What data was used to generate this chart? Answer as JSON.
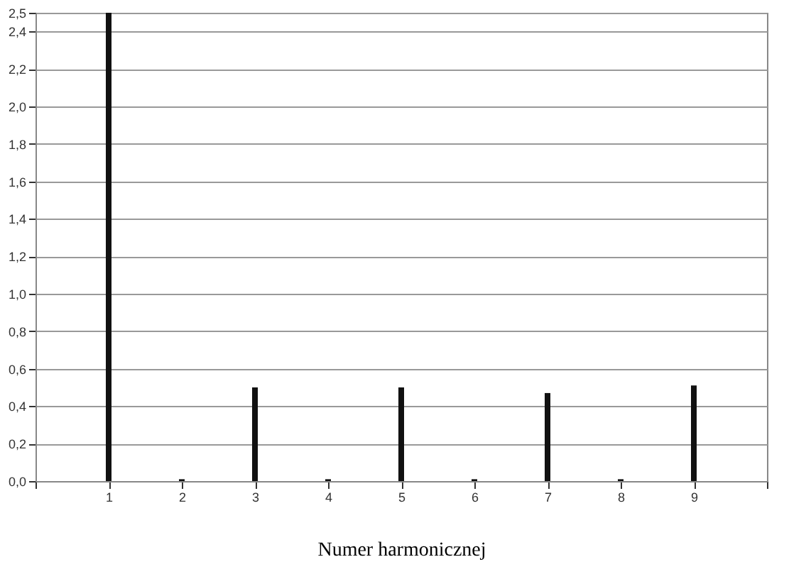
{
  "chart_data": {
    "type": "bar",
    "xlabel": "Numer harmonicznej",
    "x": [
      1,
      2,
      3,
      4,
      5,
      6,
      7,
      8,
      9
    ],
    "values": [
      2.5,
      0.01,
      0.5,
      0.01,
      0.5,
      0.01,
      0.47,
      0.01,
      0.51
    ],
    "color": "#111111",
    "xlim": [
      0,
      10
    ],
    "xticks": [
      {
        "value": 0,
        "label": null
      },
      1,
      2,
      3,
      4,
      5,
      6,
      7,
      8,
      9,
      {
        "value": 10,
        "label": null
      }
    ],
    "ylim": [
      0,
      2.5
    ],
    "yticks": [
      {
        "value": 0,
        "label": "0,0"
      },
      {
        "value": 0.2,
        "label": "0,2"
      },
      {
        "value": 0.4,
        "label": "0,4"
      },
      {
        "value": 0.6,
        "label": "0,6"
      },
      {
        "value": 0.8,
        "label": "0,8"
      },
      {
        "value": 1.0,
        "label": "1,0"
      },
      {
        "value": 1.2,
        "label": "1,2"
      },
      {
        "value": 1.4,
        "label": "1,4"
      },
      {
        "value": 1.6,
        "label": "1,6"
      },
      {
        "value": 1.8,
        "label": "1,8"
      },
      {
        "value": 2.0,
        "label": "2,0"
      },
      {
        "value": 2.2,
        "label": "2,2"
      },
      {
        "value": 2.4,
        "label": "2,4"
      },
      {
        "value": 2.5,
        "label": "2,5"
      }
    ],
    "grid": "y"
  }
}
